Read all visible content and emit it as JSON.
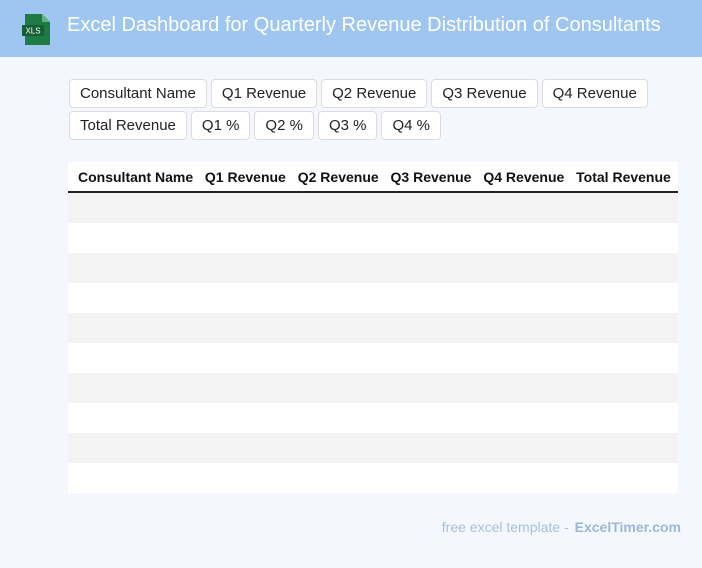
{
  "header": {
    "icon_label": "XLS",
    "title": "Excel Dashboard for Quarterly Revenue Distribution of Consultants"
  },
  "column_buttons": [
    [
      "Consultant Name",
      "Q1 Revenue",
      "Q2 Revenue",
      "Q3 Revenue",
      "Q4 Revenue"
    ],
    [
      "Total Revenue",
      "Q1 %",
      "Q2 %",
      "Q3 %",
      "Q4 %"
    ]
  ],
  "table": {
    "columns": [
      "Consultant Name",
      "Q1 Revenue",
      "Q2 Revenue",
      "Q3 Revenue",
      "Q4 Revenue",
      "Total Revenue"
    ]
  },
  "footer": {
    "text": "free excel template -",
    "link": "ExcelTimer.com"
  }
}
